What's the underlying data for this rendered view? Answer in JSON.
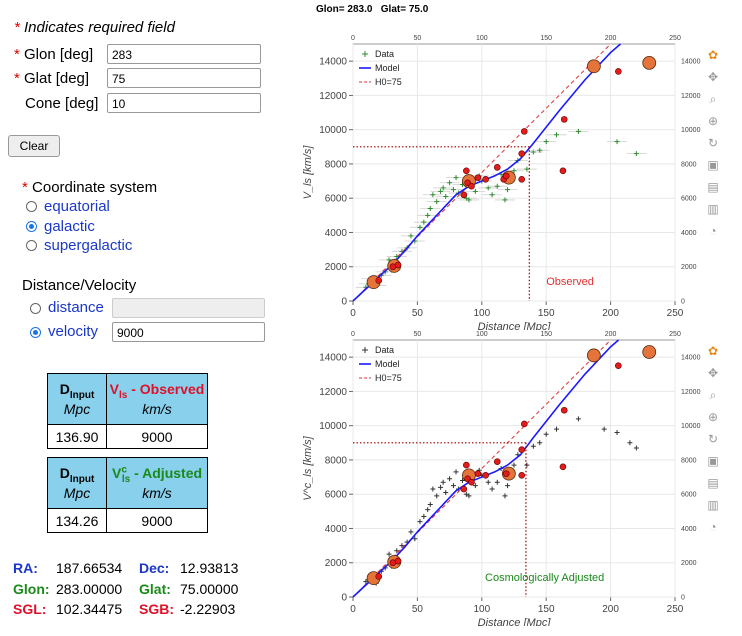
{
  "form": {
    "required_note": "Indicates required field",
    "glon_label": "Glon  [deg]",
    "glon_value": "283",
    "glat_label": "Glat   [deg]",
    "glat_value": "75",
    "cone_label": "Cone [deg]",
    "cone_value": "10",
    "clear_label": "Clear",
    "coord_title": "Coordinate system",
    "coord_options": [
      "equatorial",
      "galactic",
      "supergalactic"
    ],
    "coord_selected": "galactic",
    "dv_title": "Distance/Velocity",
    "dv_options": [
      "distance",
      "velocity"
    ],
    "dv_selected": "velocity",
    "distance_value": "",
    "velocity_value": "9000"
  },
  "table_observed": {
    "d_label": "D",
    "d_sub": "Input",
    "d_unit": "Mpc",
    "v_label": "V",
    "v_sub": "ls",
    "v_suffix": " - Observed",
    "v_unit": "km/s",
    "d_value": "136.90",
    "v_value": "9000"
  },
  "table_adjusted": {
    "d_label": "D",
    "d_sub": "Input",
    "d_unit": "Mpc",
    "v_label": "V",
    "v_sup": "c",
    "v_sub": "ls",
    "v_suffix": " - Adjusted",
    "v_unit": "km/s",
    "d_value": "134.26",
    "v_value": "9000"
  },
  "coords": {
    "ra_label": "RA:",
    "ra_value": "187.66534",
    "dec_label": "Dec:",
    "dec_value": "12.93813",
    "glon_label": "Glon:",
    "glon_value": "283.00000",
    "glat_label": "Glat:",
    "glat_value": "75.00000",
    "sgl_label": "SGL:",
    "sgl_value": "102.34475",
    "sgb_label": "SGB:",
    "sgb_value": "-2.22903"
  },
  "header": {
    "glon_text": "Glon= 283.0",
    "glat_text": "Glat= 75.0"
  },
  "colors": {
    "model": "#1a1aff",
    "h0": "#e03030",
    "data_obs": "#2e8b2e",
    "data_adj": "#333333",
    "circle": "#e5743a",
    "dot": "#e21b1b",
    "blue_text": "#1a37c9",
    "green_text": "#1a8a1a",
    "red_text": "#e0102a"
  },
  "chart_data": [
    {
      "type": "scatter",
      "title": "",
      "annotation": "Observed",
      "xlabel": "Distance [Mpc]",
      "ylabel": "V_ls [km/s]",
      "xlim": [
        0,
        250
      ],
      "ylim": [
        0,
        15000
      ],
      "xticks": [
        0,
        50,
        100,
        150,
        200,
        250
      ],
      "yticks": [
        0,
        2000,
        4000,
        6000,
        8000,
        10000,
        12000,
        14000
      ],
      "legend": [
        "Data",
        "Model",
        "H0=75"
      ],
      "legend_position": "top-left",
      "guide": {
        "distance": 136.9,
        "velocity": 9000
      },
      "model": {
        "x": [
          0,
          10,
          20,
          30,
          40,
          50,
          60,
          70,
          80,
          90,
          100,
          110,
          120,
          130,
          140,
          160,
          180,
          200,
          220
        ],
        "y": [
          0,
          700,
          1400,
          2100,
          2900,
          3800,
          4600,
          5400,
          6200,
          6700,
          7000,
          7300,
          7700,
          8300,
          9200,
          11100,
          12900,
          14500,
          15800
        ]
      },
      "h0_line": {
        "x": [
          0,
          200
        ],
        "y": [
          0,
          15000
        ]
      },
      "big_circles": [
        {
          "x": 16,
          "y": 1100
        },
        {
          "x": 32,
          "y": 2050
        },
        {
          "x": 90,
          "y": 7000
        },
        {
          "x": 121,
          "y": 7200
        },
        {
          "x": 187,
          "y": 13700
        },
        {
          "x": 230,
          "y": 13900
        }
      ],
      "red_dots": [
        {
          "x": 20,
          "y": 1200
        },
        {
          "x": 31,
          "y": 2000
        },
        {
          "x": 35,
          "y": 2100
        },
        {
          "x": 86,
          "y": 6200
        },
        {
          "x": 88,
          "y": 7600
        },
        {
          "x": 89,
          "y": 6900
        },
        {
          "x": 92,
          "y": 6700
        },
        {
          "x": 97,
          "y": 7200
        },
        {
          "x": 103,
          "y": 7100
        },
        {
          "x": 112,
          "y": 7800
        },
        {
          "x": 117,
          "y": 7100
        },
        {
          "x": 119,
          "y": 7300
        },
        {
          "x": 131,
          "y": 7100
        },
        {
          "x": 131,
          "y": 8600
        },
        {
          "x": 133,
          "y": 9900
        },
        {
          "x": 163,
          "y": 7600
        },
        {
          "x": 164,
          "y": 10600
        },
        {
          "x": 206,
          "y": 13400
        }
      ],
      "data_points": [
        [
          10,
          800
        ],
        [
          12,
          1000
        ],
        [
          14,
          1300
        ],
        [
          18,
          900
        ],
        [
          22,
          1500
        ],
        [
          25,
          1700
        ],
        [
          28,
          2400
        ],
        [
          30,
          1800
        ],
        [
          34,
          2600
        ],
        [
          38,
          2900
        ],
        [
          42,
          3100
        ],
        [
          45,
          3800
        ],
        [
          48,
          3500
        ],
        [
          52,
          4300
        ],
        [
          55,
          4600
        ],
        [
          58,
          5000
        ],
        [
          60,
          5400
        ],
        [
          62,
          6200
        ],
        [
          65,
          5800
        ],
        [
          68,
          6400
        ],
        [
          70,
          6600
        ],
        [
          72,
          6100
        ],
        [
          75,
          6900
        ],
        [
          78,
          6500
        ],
        [
          80,
          7200
        ],
        [
          82,
          6300
        ],
        [
          85,
          6800
        ],
        [
          88,
          6000
        ],
        [
          90,
          5900
        ],
        [
          95,
          6400
        ],
        [
          98,
          7300
        ],
        [
          100,
          7000
        ],
        [
          105,
          6600
        ],
        [
          108,
          6200
        ],
        [
          112,
          6700
        ],
        [
          115,
          7400
        ],
        [
          118,
          5900
        ],
        [
          120,
          6500
        ],
        [
          125,
          7600
        ],
        [
          128,
          8200
        ],
        [
          135,
          7700
        ],
        [
          140,
          8700
        ],
        [
          145,
          8800
        ],
        [
          150,
          9300
        ],
        [
          158,
          9700
        ],
        [
          175,
          9900
        ],
        [
          205,
          9300
        ],
        [
          220,
          8600
        ]
      ]
    },
    {
      "type": "scatter",
      "title": "",
      "annotation": "Cosmologically Adjusted",
      "xlabel": "Distance [Mpc]",
      "ylabel": "V^c_ls [km/s]",
      "xlim": [
        0,
        250
      ],
      "ylim": [
        0,
        15000
      ],
      "xticks": [
        0,
        50,
        100,
        150,
        200,
        250
      ],
      "yticks": [
        0,
        2000,
        4000,
        6000,
        8000,
        10000,
        12000,
        14000
      ],
      "legend": [
        "Data",
        "Model",
        "H0=75"
      ],
      "legend_position": "top-left",
      "guide": {
        "distance": 134.26,
        "velocity": 9000
      },
      "model": {
        "x": [
          0,
          10,
          20,
          30,
          40,
          50,
          60,
          70,
          80,
          90,
          100,
          110,
          120,
          130,
          140,
          160,
          180,
          200,
          220
        ],
        "y": [
          0,
          700,
          1400,
          2100,
          2900,
          3800,
          4600,
          5400,
          6200,
          6700,
          7000,
          7300,
          7700,
          8300,
          9300,
          11200,
          13000,
          14600,
          15900
        ]
      },
      "h0_line": {
        "x": [
          0,
          200
        ],
        "y": [
          0,
          15000
        ]
      },
      "big_circles": [
        {
          "x": 16,
          "y": 1100
        },
        {
          "x": 32,
          "y": 2050
        },
        {
          "x": 90,
          "y": 7100
        },
        {
          "x": 121,
          "y": 7200
        },
        {
          "x": 187,
          "y": 14100
        },
        {
          "x": 230,
          "y": 14300
        }
      ],
      "red_dots": [
        {
          "x": 20,
          "y": 1200
        },
        {
          "x": 31,
          "y": 2000
        },
        {
          "x": 35,
          "y": 2100
        },
        {
          "x": 86,
          "y": 6300
        },
        {
          "x": 88,
          "y": 7700
        },
        {
          "x": 89,
          "y": 6900
        },
        {
          "x": 92,
          "y": 6700
        },
        {
          "x": 97,
          "y": 7200
        },
        {
          "x": 103,
          "y": 7100
        },
        {
          "x": 112,
          "y": 7900
        },
        {
          "x": 119,
          "y": 7200
        },
        {
          "x": 131,
          "y": 7100
        },
        {
          "x": 131,
          "y": 8600
        },
        {
          "x": 133,
          "y": 10100
        },
        {
          "x": 163,
          "y": 7600
        },
        {
          "x": 164,
          "y": 10900
        },
        {
          "x": 206,
          "y": 13500
        }
      ],
      "data_points": [
        [
          10,
          900
        ],
        [
          12,
          1000
        ],
        [
          14,
          1300
        ],
        [
          18,
          800
        ],
        [
          22,
          1500
        ],
        [
          25,
          1700
        ],
        [
          28,
          2500
        ],
        [
          30,
          1800
        ],
        [
          34,
          2700
        ],
        [
          38,
          3000
        ],
        [
          42,
          3200
        ],
        [
          45,
          3800
        ],
        [
          48,
          3400
        ],
        [
          52,
          4400
        ],
        [
          55,
          4700
        ],
        [
          58,
          5100
        ],
        [
          60,
          5400
        ],
        [
          62,
          6300
        ],
        [
          65,
          5900
        ],
        [
          68,
          6400
        ],
        [
          70,
          6700
        ],
        [
          72,
          6100
        ],
        [
          75,
          6900
        ],
        [
          78,
          6500
        ],
        [
          80,
          7300
        ],
        [
          82,
          6300
        ],
        [
          85,
          6800
        ],
        [
          88,
          6000
        ],
        [
          90,
          5900
        ],
        [
          95,
          6500
        ],
        [
          98,
          7400
        ],
        [
          100,
          7100
        ],
        [
          105,
          6700
        ],
        [
          108,
          6300
        ],
        [
          112,
          6700
        ],
        [
          115,
          7500
        ],
        [
          118,
          5900
        ],
        [
          120,
          6500
        ],
        [
          125,
          7700
        ],
        [
          128,
          8300
        ],
        [
          135,
          7700
        ],
        [
          140,
          8800
        ],
        [
          145,
          9000
        ],
        [
          150,
          9500
        ],
        [
          158,
          9800
        ],
        [
          175,
          10400
        ],
        [
          195,
          9800
        ],
        [
          205,
          9600
        ],
        [
          215,
          9000
        ],
        [
          220,
          8700
        ]
      ]
    }
  ]
}
